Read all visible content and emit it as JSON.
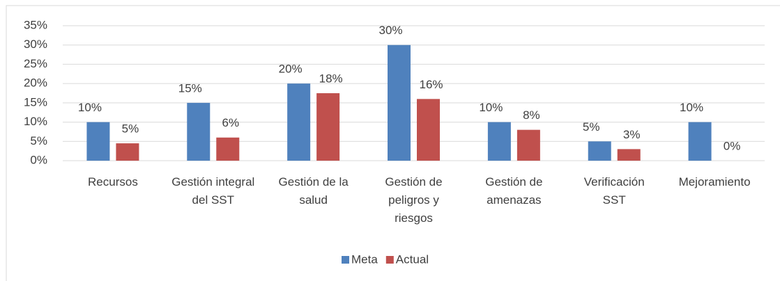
{
  "chart_data": {
    "type": "bar",
    "categories": [
      "Recursos",
      "Gestión integral del SST",
      "Gestión de la salud",
      "Gestión de peligros y riesgos",
      "Gestión de amenazas",
      "Verificación SST",
      "Mejoramiento"
    ],
    "series": [
      {
        "name": "Meta",
        "color": "#4f81bd",
        "values": [
          10,
          15,
          20,
          30,
          10,
          5,
          10
        ],
        "value_labels": [
          "10%",
          "15%",
          "20%",
          "30%",
          "10%",
          "5%",
          "10%"
        ]
      },
      {
        "name": "Actual",
        "color": "#c0504d",
        "values": [
          4.5,
          6,
          17.5,
          16,
          8,
          3,
          0
        ],
        "value_labels": [
          "5%",
          "6%",
          "18%",
          "16%",
          "8%",
          "3%",
          "0%"
        ]
      }
    ],
    "ylim": [
      0,
      35
    ],
    "yticks": [
      {
        "value": 0,
        "label": "0%"
      },
      {
        "value": 5,
        "label": "5%"
      },
      {
        "value": 10,
        "label": "10%"
      },
      {
        "value": 15,
        "label": "15%"
      },
      {
        "value": 20,
        "label": "20%"
      },
      {
        "value": 25,
        "label": "25%"
      },
      {
        "value": 30,
        "label": "30%"
      },
      {
        "value": 35,
        "label": "35%"
      }
    ],
    "grid": true,
    "legend": "bottom"
  }
}
